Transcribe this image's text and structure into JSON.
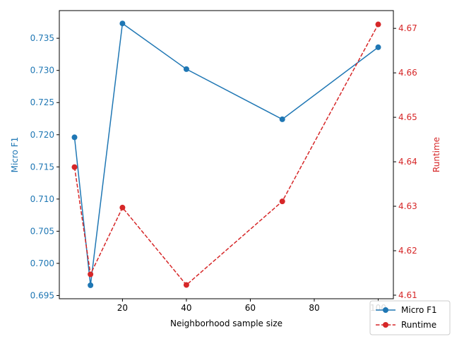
{
  "chart_data": {
    "type": "line",
    "title": "",
    "xlabel": "Neighborhood sample size",
    "xlim": [
      0.25,
      104.75
    ],
    "xticks": [
      20,
      40,
      60,
      80,
      100
    ],
    "x": [
      5,
      10,
      20,
      40,
      70,
      100
    ],
    "y_left": {
      "label": "Micro F1",
      "color": "#1f77b4",
      "lim": [
        0.6945,
        0.7393
      ],
      "ticks": [
        0.695,
        0.7,
        0.705,
        0.71,
        0.715,
        0.72,
        0.725,
        0.73,
        0.735
      ],
      "tick_labels": [
        "0.695",
        "0.700",
        "0.705",
        "0.710",
        "0.715",
        "0.720",
        "0.725",
        "0.730",
        "0.735"
      ]
    },
    "y_right": {
      "label": "Runtime",
      "color": "#d62728",
      "lim": [
        4.6092,
        4.674
      ],
      "ticks": [
        4.61,
        4.62,
        4.63,
        4.64,
        4.65,
        4.66,
        4.67
      ],
      "tick_labels": [
        "4.61",
        "4.62",
        "4.63",
        "4.64",
        "4.65",
        "4.66",
        "4.67"
      ]
    },
    "series": [
      {
        "name": "Micro F1",
        "axis": "left",
        "color": "#1f77b4",
        "linestyle": "solid",
        "marker": "circle",
        "values": [
          0.7196,
          0.6966,
          0.7373,
          0.7302,
          0.7224,
          0.7336
        ]
      },
      {
        "name": "Runtime",
        "axis": "right",
        "color": "#d62728",
        "linestyle": "dashed",
        "marker": "circle",
        "values": [
          4.6388,
          4.6147,
          4.6297,
          4.6123,
          4.6311,
          4.6709
        ]
      }
    ],
    "legend_position": "bottom-right",
    "grid": false
  }
}
